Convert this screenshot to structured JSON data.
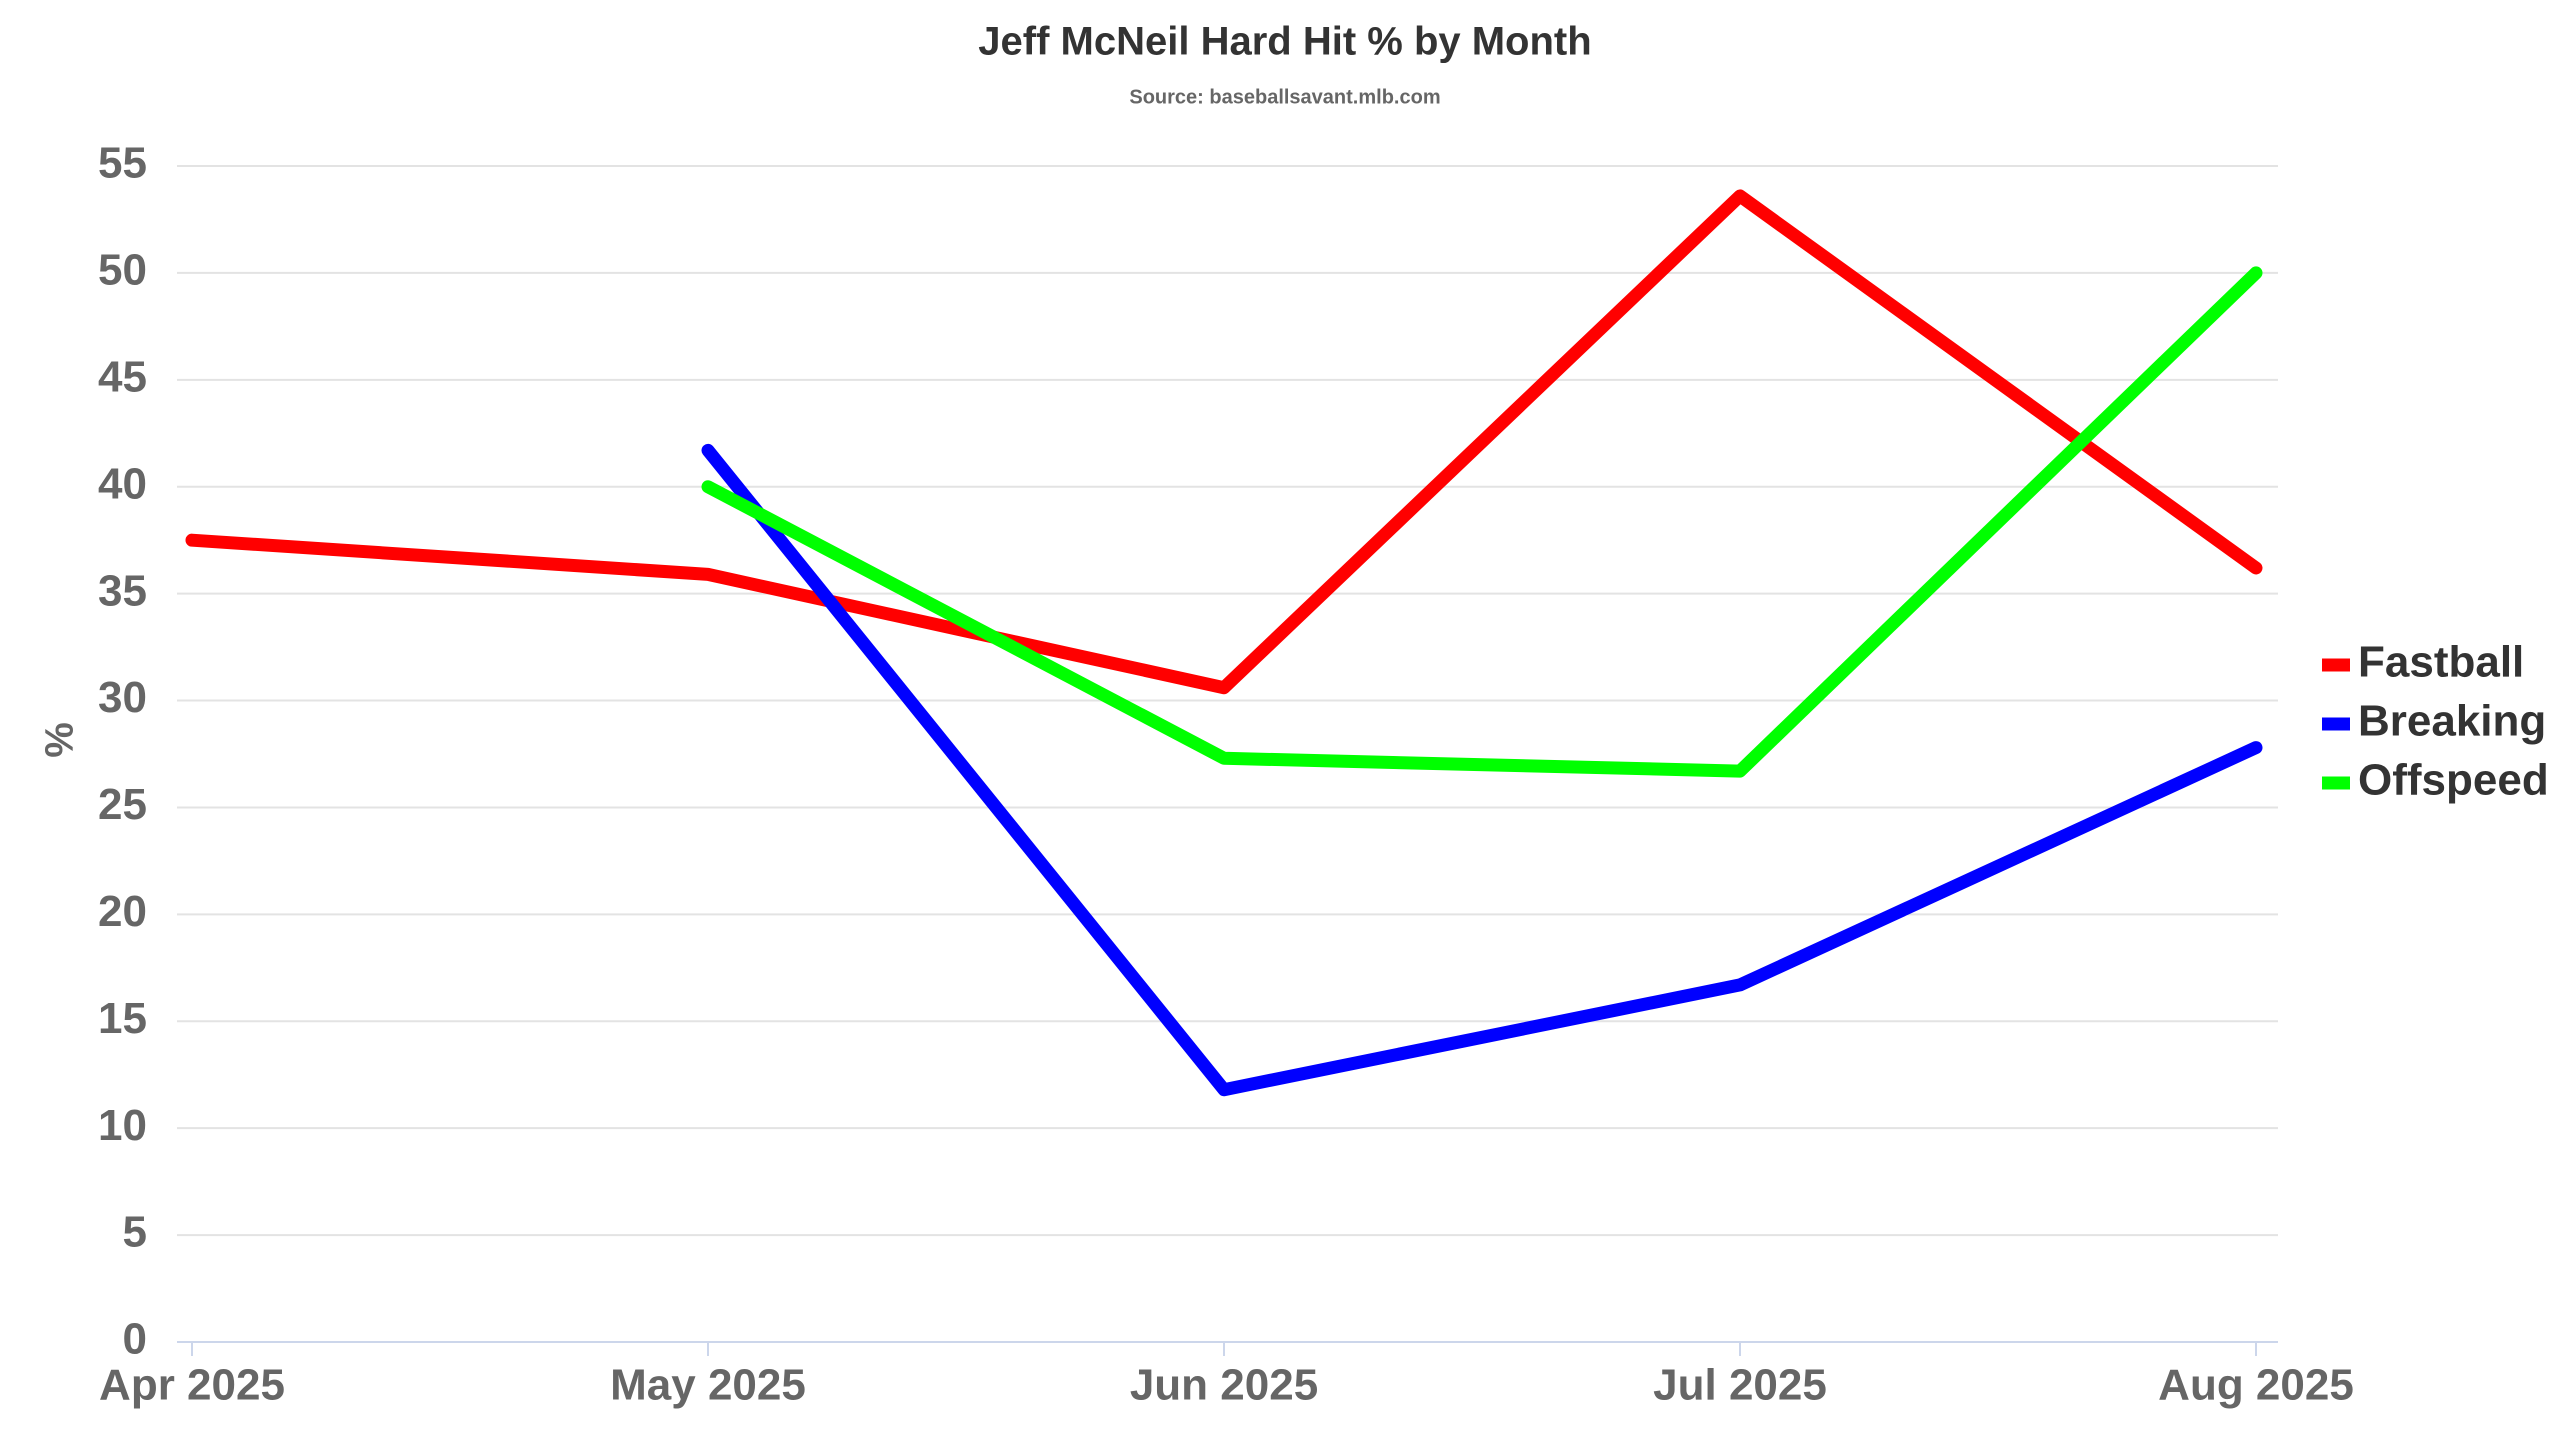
{
  "chart_data": {
    "type": "line",
    "title": "Jeff McNeil Hard Hit % by Month",
    "subtitle": "Source: baseballsavant.mlb.com",
    "y_label": "%",
    "categories": [
      "Apr 2025",
      "May 2025",
      "Jun 2025",
      "Jul 2025",
      "Aug 2025"
    ],
    "series": [
      {
        "name": "Fastball",
        "color": "#ff0000",
        "values": [
          37.5,
          35.9,
          30.6,
          53.6,
          36.2
        ]
      },
      {
        "name": "Breaking",
        "color": "#0000ff",
        "values": [
          null,
          41.7,
          11.8,
          16.7,
          27.8
        ]
      },
      {
        "name": "Offspeed",
        "color": "#00ff00",
        "values": [
          null,
          40.0,
          27.3,
          26.7,
          50.0
        ]
      }
    ],
    "ylim": [
      0,
      55
    ],
    "yticks": [
      0,
      5,
      10,
      15,
      20,
      25,
      30,
      35,
      40,
      45,
      50,
      55
    ],
    "grid": true,
    "legend": "right"
  }
}
